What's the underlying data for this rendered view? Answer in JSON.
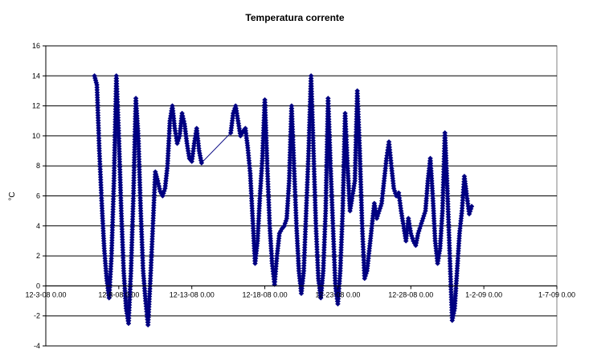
{
  "chart_data": {
    "type": "line",
    "title": "Temperatura corrente",
    "xlabel": "",
    "ylabel": "°C",
    "ylim": [
      -4,
      16
    ],
    "y_ticks": [
      "16",
      "14",
      "12",
      "10",
      "8",
      "6",
      "4",
      "2",
      "0",
      "-2",
      "-4"
    ],
    "x_tick_labels": [
      "12-3-08 0.00",
      "12-8-08 0.00",
      "12-13-08 0.00",
      "12-18-08 0.00",
      "12-23-08 0.00",
      "12-28-08 0.00",
      "1-2-09 0.00",
      "1-7-09 0.00"
    ],
    "x_tick_dates": [
      "2008-12-03",
      "2008-12-08",
      "2008-12-13",
      "2008-12-18",
      "2008-12-23",
      "2008-12-28",
      "2009-01-02",
      "2009-01-07"
    ],
    "grid": true,
    "legend": "none",
    "marker": "diamond",
    "color": "#000080",
    "series": [
      {
        "points": [
          [
            "2008-12-06 08:00",
            14.0
          ],
          [
            "2008-12-06 12:00",
            13.4
          ],
          [
            "2008-12-06 16:00",
            9.0
          ],
          [
            "2008-12-06 20:00",
            5.5
          ],
          [
            "2008-12-07 00:00",
            2.5
          ],
          [
            "2008-12-07 04:00",
            0.5
          ],
          [
            "2008-12-07 08:00",
            -0.8
          ],
          [
            "2008-12-07 12:00",
            2.0
          ],
          [
            "2008-12-07 16:00",
            7.0
          ],
          [
            "2008-12-07 20:00",
            14.0
          ],
          [
            "2008-12-08 00:00",
            10.0
          ],
          [
            "2008-12-08 04:00",
            5.0
          ],
          [
            "2008-12-08 08:00",
            1.0
          ],
          [
            "2008-12-08 12:00",
            -1.5
          ],
          [
            "2008-12-08 16:00",
            -2.5
          ],
          [
            "2008-12-08 20:00",
            1.0
          ],
          [
            "2008-12-09 00:00",
            6.0
          ],
          [
            "2008-12-09 04:00",
            12.5
          ],
          [
            "2008-12-09 08:00",
            10.0
          ],
          [
            "2008-12-09 12:00",
            5.0
          ],
          [
            "2008-12-09 16:00",
            1.0
          ],
          [
            "2008-12-09 20:00",
            -1.0
          ],
          [
            "2008-12-10 00:00",
            -2.6
          ],
          [
            "2008-12-10 04:00",
            0.5
          ],
          [
            "2008-12-10 08:00",
            4.0
          ],
          [
            "2008-12-10 12:00",
            7.6
          ],
          [
            "2008-12-10 16:00",
            7.0
          ],
          [
            "2008-12-10 20:00",
            6.3
          ],
          [
            "2008-12-11 00:00",
            6.0
          ],
          [
            "2008-12-11 04:00",
            6.5
          ],
          [
            "2008-12-11 08:00",
            8.0
          ],
          [
            "2008-12-11 12:00",
            11.0
          ],
          [
            "2008-12-11 16:00",
            12.0
          ],
          [
            "2008-12-11 20:00",
            10.5
          ],
          [
            "2008-12-12 00:00",
            9.5
          ],
          [
            "2008-12-12 04:00",
            10.0
          ],
          [
            "2008-12-12 08:00",
            11.5
          ],
          [
            "2008-12-12 12:00",
            10.8
          ],
          [
            "2008-12-12 16:00",
            9.5
          ],
          [
            "2008-12-12 20:00",
            8.5
          ],
          [
            "2008-12-13 00:00",
            8.3
          ],
          [
            "2008-12-13 04:00",
            9.5
          ],
          [
            "2008-12-13 08:00",
            10.5
          ],
          [
            "2008-12-13 12:00",
            9.0
          ],
          [
            "2008-12-13 16:00",
            8.2
          ],
          [
            "2008-12-15 16:00",
            10.2
          ],
          [
            "2008-12-15 20:00",
            11.5
          ],
          [
            "2008-12-16 00:00",
            12.0
          ],
          [
            "2008-12-16 04:00",
            11.0
          ],
          [
            "2008-12-16 08:00",
            10.0
          ],
          [
            "2008-12-16 12:00",
            10.3
          ],
          [
            "2008-12-16 16:00",
            10.5
          ],
          [
            "2008-12-16 20:00",
            9.2
          ],
          [
            "2008-12-17 00:00",
            7.5
          ],
          [
            "2008-12-17 04:00",
            4.5
          ],
          [
            "2008-12-17 08:00",
            1.5
          ],
          [
            "2008-12-17 12:00",
            3.0
          ],
          [
            "2008-12-17 16:00",
            6.0
          ],
          [
            "2008-12-17 20:00",
            8.5
          ],
          [
            "2008-12-18 00:00",
            12.4
          ],
          [
            "2008-12-18 04:00",
            8.0
          ],
          [
            "2008-12-18 08:00",
            4.0
          ],
          [
            "2008-12-18 12:00",
            1.5
          ],
          [
            "2008-12-18 16:00",
            0.1
          ],
          [
            "2008-12-18 20:00",
            2.0
          ],
          [
            "2008-12-19 00:00",
            3.5
          ],
          [
            "2008-12-19 04:00",
            3.8
          ],
          [
            "2008-12-19 08:00",
            4.0
          ],
          [
            "2008-12-19 12:00",
            4.5
          ],
          [
            "2008-12-19 16:00",
            7.0
          ],
          [
            "2008-12-19 20:00",
            12.0
          ],
          [
            "2008-12-20 00:00",
            8.0
          ],
          [
            "2008-12-20 04:00",
            4.0
          ],
          [
            "2008-12-20 08:00",
            1.0
          ],
          [
            "2008-12-20 12:00",
            -0.5
          ],
          [
            "2008-12-20 16:00",
            1.0
          ],
          [
            "2008-12-20 20:00",
            5.0
          ],
          [
            "2008-12-21 00:00",
            9.0
          ],
          [
            "2008-12-21 04:00",
            14.0
          ],
          [
            "2008-12-21 08:00",
            9.0
          ],
          [
            "2008-12-21 12:00",
            4.0
          ],
          [
            "2008-12-21 16:00",
            0.5
          ],
          [
            "2008-12-21 20:00",
            -0.8
          ],
          [
            "2008-12-22 00:00",
            1.0
          ],
          [
            "2008-12-22 04:00",
            5.0
          ],
          [
            "2008-12-22 08:00",
            12.5
          ],
          [
            "2008-12-22 12:00",
            8.0
          ],
          [
            "2008-12-22 16:00",
            4.0
          ],
          [
            "2008-12-22 20:00",
            0.0
          ],
          [
            "2008-12-23 00:00",
            -1.2
          ],
          [
            "2008-12-23 04:00",
            1.0
          ],
          [
            "2008-12-23 08:00",
            5.0
          ],
          [
            "2008-12-23 12:00",
            11.5
          ],
          [
            "2008-12-23 16:00",
            8.0
          ],
          [
            "2008-12-23 20:00",
            5.0
          ],
          [
            "2008-12-24 00:00",
            6.0
          ],
          [
            "2008-12-24 04:00",
            7.0
          ],
          [
            "2008-12-24 08:00",
            13.0
          ],
          [
            "2008-12-24 12:00",
            9.0
          ],
          [
            "2008-12-24 16:00",
            4.0
          ],
          [
            "2008-12-24 20:00",
            0.5
          ],
          [
            "2008-12-25 00:00",
            1.0
          ],
          [
            "2008-12-25 04:00",
            2.5
          ],
          [
            "2008-12-25 08:00",
            4.0
          ],
          [
            "2008-12-25 12:00",
            5.5
          ],
          [
            "2008-12-25 16:00",
            4.5
          ],
          [
            "2008-12-25 20:00",
            5.0
          ],
          [
            "2008-12-26 00:00",
            5.5
          ],
          [
            "2008-12-26 04:00",
            7.0
          ],
          [
            "2008-12-26 08:00",
            8.5
          ],
          [
            "2008-12-26 12:00",
            9.6
          ],
          [
            "2008-12-26 16:00",
            8.0
          ],
          [
            "2008-12-26 20:00",
            6.5
          ],
          [
            "2008-12-27 00:00",
            6.0
          ],
          [
            "2008-12-27 04:00",
            6.2
          ],
          [
            "2008-12-27 08:00",
            5.0
          ],
          [
            "2008-12-27 12:00",
            4.0
          ],
          [
            "2008-12-27 16:00",
            3.0
          ],
          [
            "2008-12-27 20:00",
            4.5
          ],
          [
            "2008-12-28 00:00",
            3.5
          ],
          [
            "2008-12-28 04:00",
            3.0
          ],
          [
            "2008-12-28 08:00",
            2.7
          ],
          [
            "2008-12-28 12:00",
            3.5
          ],
          [
            "2008-12-28 16:00",
            4.0
          ],
          [
            "2008-12-28 20:00",
            4.5
          ],
          [
            "2008-12-29 00:00",
            5.0
          ],
          [
            "2008-12-29 04:00",
            7.0
          ],
          [
            "2008-12-29 08:00",
            8.5
          ],
          [
            "2008-12-29 12:00",
            6.0
          ],
          [
            "2008-12-29 16:00",
            3.0
          ],
          [
            "2008-12-29 20:00",
            1.5
          ],
          [
            "2008-12-30 00:00",
            2.5
          ],
          [
            "2008-12-30 04:00",
            5.0
          ],
          [
            "2008-12-30 08:00",
            10.2
          ],
          [
            "2008-12-30 12:00",
            6.5
          ],
          [
            "2008-12-30 16:00",
            2.0
          ],
          [
            "2008-12-30 20:00",
            -2.3
          ],
          [
            "2008-12-31 00:00",
            -1.5
          ],
          [
            "2008-12-31 04:00",
            1.0
          ],
          [
            "2008-12-31 08:00",
            3.5
          ],
          [
            "2008-12-31 12:00",
            5.0
          ],
          [
            "2008-12-31 16:00",
            7.3
          ],
          [
            "2008-12-31 20:00",
            6.0
          ],
          [
            "2009-01-01 00:00",
            4.8
          ],
          [
            "2009-01-01 04:00",
            5.3
          ]
        ]
      }
    ]
  }
}
